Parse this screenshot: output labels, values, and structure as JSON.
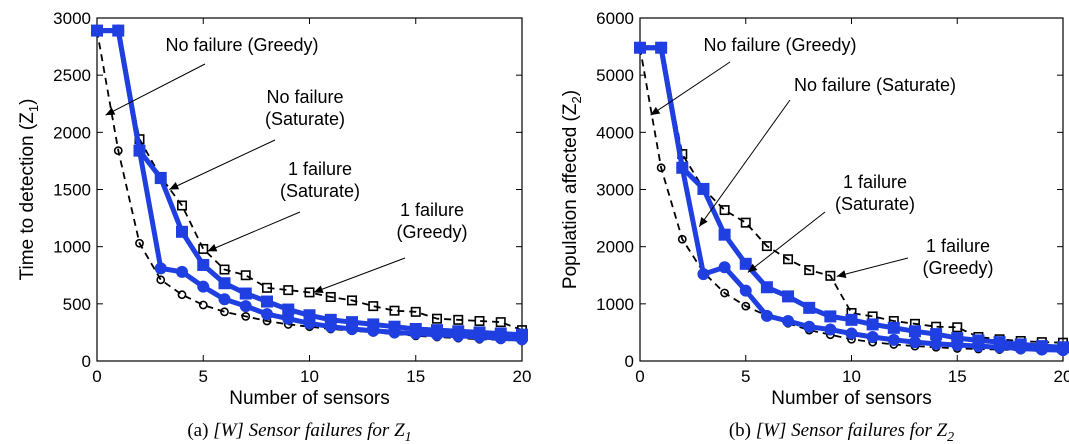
{
  "chart_data": [
    {
      "type": "line",
      "xlabel": "Number of sensors",
      "ylabel": "Time to detection (Z",
      "ylabel_sub": "1",
      "ylabel_end": ")",
      "xlim": [
        0,
        20
      ],
      "ylim": [
        0,
        3000
      ],
      "xticks": [
        0,
        5,
        10,
        15,
        20
      ],
      "yticks": [
        0,
        500,
        1000,
        1500,
        2000,
        2500,
        3000
      ],
      "grid": false,
      "caption": {
        "prefix": "(a)  ",
        "italic": "[W] Sensor failures for Z",
        "sub": "1"
      },
      "series": [
        {
          "key": "nofail_greedy",
          "style": "dashed-circle",
          "x": [
            0,
            1,
            2,
            3,
            4,
            5,
            6,
            7,
            8,
            9,
            10,
            11,
            12,
            13,
            14,
            15,
            16,
            17,
            18,
            19,
            20
          ],
          "y": [
            2890,
            1840,
            1030,
            710,
            580,
            490,
            430,
            390,
            350,
            320,
            300,
            280,
            265,
            250,
            235,
            220,
            210,
            200,
            190,
            185,
            175
          ]
        },
        {
          "key": "fail_greedy",
          "style": "dashed-square",
          "x": [
            0,
            1,
            2,
            3,
            4,
            5,
            6,
            7,
            8,
            9,
            10,
            11,
            12,
            13,
            14,
            15,
            16,
            17,
            18,
            19,
            20
          ],
          "y": [
            2890,
            2890,
            1940,
            1610,
            1360,
            980,
            800,
            750,
            640,
            620,
            600,
            560,
            530,
            480,
            440,
            430,
            370,
            360,
            350,
            340,
            270
          ]
        },
        {
          "key": "nofail_saturate",
          "style": "solid-circle",
          "x": [
            0,
            1,
            2,
            3,
            4,
            5,
            6,
            7,
            8,
            9,
            10,
            11,
            12,
            13,
            14,
            15,
            16,
            17,
            18,
            19,
            20
          ],
          "y": [
            2890,
            2890,
            1840,
            810,
            780,
            650,
            540,
            480,
            410,
            370,
            330,
            300,
            280,
            265,
            250,
            240,
            230,
            220,
            210,
            200,
            190
          ]
        },
        {
          "key": "fail_saturate",
          "style": "solid-square",
          "x": [
            0,
            1,
            2,
            3,
            4,
            5,
            6,
            7,
            8,
            9,
            10,
            11,
            12,
            13,
            14,
            15,
            16,
            17,
            18,
            19,
            20
          ],
          "y": [
            2890,
            2890,
            1840,
            1600,
            1130,
            840,
            680,
            590,
            520,
            450,
            400,
            360,
            340,
            320,
            300,
            280,
            270,
            260,
            250,
            240,
            230
          ]
        }
      ],
      "annotations": [
        {
          "lines": [
            "No failure (Greedy)"
          ],
          "target": "nofail_greedy"
        },
        {
          "lines": [
            "No failure",
            "(Saturate)"
          ],
          "target": "nofail_saturate"
        },
        {
          "lines": [
            "1 failure",
            "(Saturate)"
          ],
          "target": "fail_saturate"
        },
        {
          "lines": [
            "1 failure",
            "(Greedy)"
          ],
          "target": "fail_greedy"
        }
      ]
    },
    {
      "type": "line",
      "xlabel": "Number of sensors",
      "ylabel": "Population affected (Z",
      "ylabel_sub": "2",
      "ylabel_end": ")",
      "xlim": [
        0,
        20
      ],
      "ylim": [
        0,
        6000
      ],
      "xticks": [
        0,
        5,
        10,
        15,
        20
      ],
      "yticks": [
        0,
        1000,
        2000,
        3000,
        4000,
        5000,
        6000
      ],
      "grid": false,
      "caption": {
        "prefix": "(b)  ",
        "italic": "[W] Sensor failures for Z",
        "sub": "2"
      },
      "series": [
        {
          "key": "nofail_greedy",
          "style": "dashed-circle",
          "x": [
            0,
            1,
            2,
            3,
            4,
            5,
            6,
            7,
            8,
            9,
            10,
            11,
            12,
            13,
            14,
            15,
            16,
            17,
            18,
            19,
            20
          ],
          "y": [
            5480,
            3380,
            2130,
            1550,
            1190,
            960,
            790,
            660,
            540,
            460,
            380,
            330,
            290,
            260,
            240,
            220,
            210,
            200,
            190,
            180,
            170
          ]
        },
        {
          "key": "fail_greedy",
          "style": "dashed-square",
          "x": [
            0,
            1,
            2,
            3,
            4,
            5,
            6,
            7,
            8,
            9,
            10,
            11,
            12,
            13,
            14,
            15,
            16,
            17,
            18,
            19,
            20
          ],
          "y": [
            5480,
            5480,
            3620,
            3010,
            2640,
            2420,
            2010,
            1780,
            1590,
            1490,
            840,
            780,
            700,
            650,
            600,
            590,
            420,
            380,
            350,
            330,
            320
          ]
        },
        {
          "key": "nofail_saturate",
          "style": "solid-circle",
          "x": [
            0,
            1,
            2,
            3,
            4,
            5,
            6,
            7,
            8,
            9,
            10,
            11,
            12,
            13,
            14,
            15,
            16,
            17,
            18,
            19,
            20
          ],
          "y": [
            5480,
            5480,
            3380,
            1520,
            1640,
            1230,
            790,
            700,
            600,
            550,
            480,
            420,
            370,
            330,
            300,
            280,
            260,
            240,
            220,
            200,
            190
          ]
        },
        {
          "key": "fail_saturate",
          "style": "solid-square",
          "x": [
            0,
            1,
            2,
            3,
            4,
            5,
            6,
            7,
            8,
            9,
            10,
            11,
            12,
            13,
            14,
            15,
            16,
            17,
            18,
            19,
            20
          ],
          "y": [
            5480,
            5480,
            3380,
            3010,
            2210,
            1700,
            1290,
            1130,
            930,
            780,
            720,
            640,
            580,
            520,
            470,
            400,
            360,
            330,
            290,
            260,
            240
          ]
        }
      ],
      "annotations": [
        {
          "lines": [
            "No failure (Greedy)"
          ],
          "target": "nofail_greedy"
        },
        {
          "lines": [
            "No failure (Saturate)"
          ],
          "target": "nofail_saturate"
        },
        {
          "lines": [
            "1 failure",
            "(Saturate)"
          ],
          "target": "fail_saturate"
        },
        {
          "lines": [
            "1 failure",
            "(Greedy)"
          ],
          "target": "fail_greedy"
        }
      ]
    }
  ],
  "colors": {
    "saturate": "#1f3fe0",
    "greedy": "#000000"
  }
}
